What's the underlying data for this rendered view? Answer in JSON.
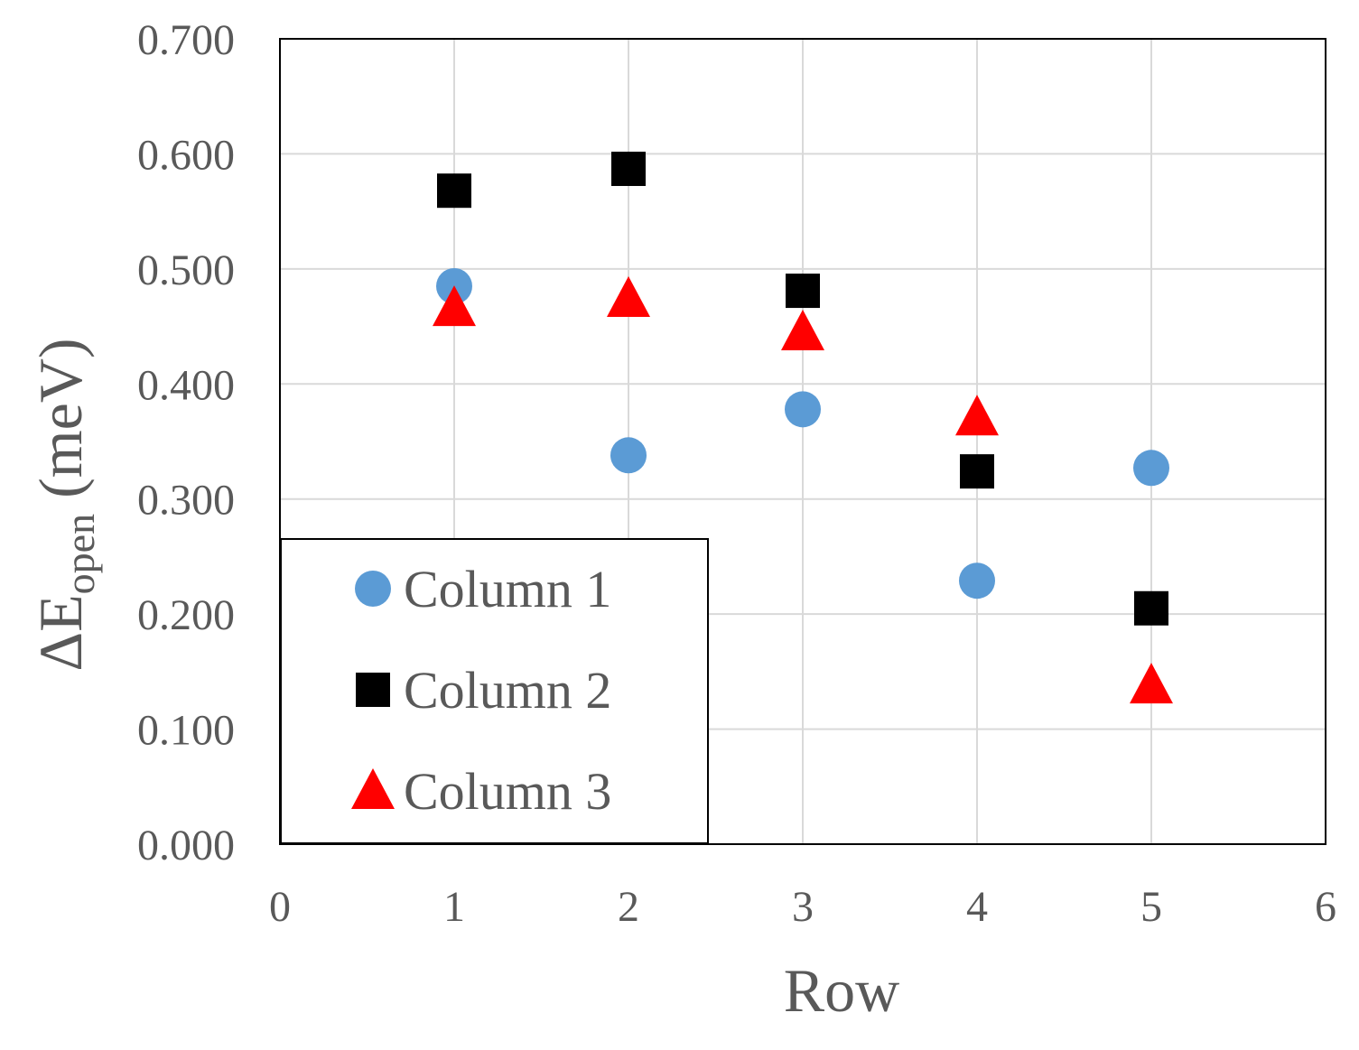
{
  "chart_data": {
    "type": "scatter",
    "xlabel": "Row",
    "ylabel": {
      "main": "ΔE",
      "sub": "open",
      "unit": " (meV)"
    },
    "xlim": [
      0,
      6
    ],
    "ylim": [
      0,
      0.7
    ],
    "x_ticks": [
      "0",
      "1",
      "2",
      "3",
      "4",
      "5",
      "6"
    ],
    "y_ticks": [
      "0.000",
      "0.100",
      "0.200",
      "0.300",
      "0.400",
      "0.500",
      "0.600",
      "0.700"
    ],
    "grid": true,
    "legend_position": "bottom-left",
    "series": [
      {
        "name": "Column 1",
        "marker": "circle",
        "color": "#5B9BD5",
        "x": [
          1,
          2,
          3,
          4,
          5
        ],
        "y": [
          0.485,
          0.338,
          0.378,
          0.229,
          0.327
        ]
      },
      {
        "name": "Column 2",
        "marker": "square",
        "color": "#000000",
        "x": [
          1,
          2,
          3,
          4,
          5
        ],
        "y": [
          0.568,
          0.587,
          0.481,
          0.324,
          0.205
        ]
      },
      {
        "name": "Column 3",
        "marker": "triangle",
        "color": "#FF0000",
        "x": [
          1,
          2,
          3,
          4,
          5
        ],
        "y": [
          0.466,
          0.474,
          0.445,
          0.371,
          0.138
        ]
      }
    ]
  }
}
